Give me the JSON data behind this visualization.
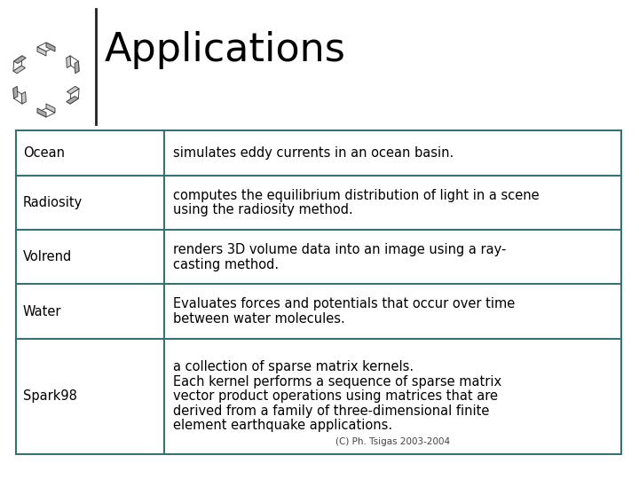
{
  "title": "Applications",
  "title_fontsize": 32,
  "title_color": "#000000",
  "background_color": "#ffffff",
  "table_border_color": "#3a7070",
  "table_border_lw": 1.5,
  "rows": [
    {
      "label": "Ocean",
      "description": "simulates eddy currents in an ocean basin.",
      "lines": 1
    },
    {
      "label": "Radiosity",
      "description": "computes the equilibrium distribution of light in a scene\nusing the radiosity method.",
      "lines": 2
    },
    {
      "label": "Volrend",
      "description": "renders 3D volume data into an image using a ray-\ncasting method.",
      "lines": 2
    },
    {
      "label": "Water",
      "description": "Evaluates forces and potentials that occur over time\nbetween water molecules.",
      "lines": 2
    },
    {
      "label": "Spark98",
      "description": "a collection of sparse matrix kernels.\nEach kernel performs a sequence of sparse matrix\nvector product operations using matrices that are\nderived from a family of three-dimensional finite\nelement earthquake applications.",
      "lines": 5
    }
  ],
  "footer": "(C) Ph. Tsigas 2003-2004",
  "cell_font_size": 10.5,
  "label_font_size": 10.5,
  "footer_font_size": 7.5
}
